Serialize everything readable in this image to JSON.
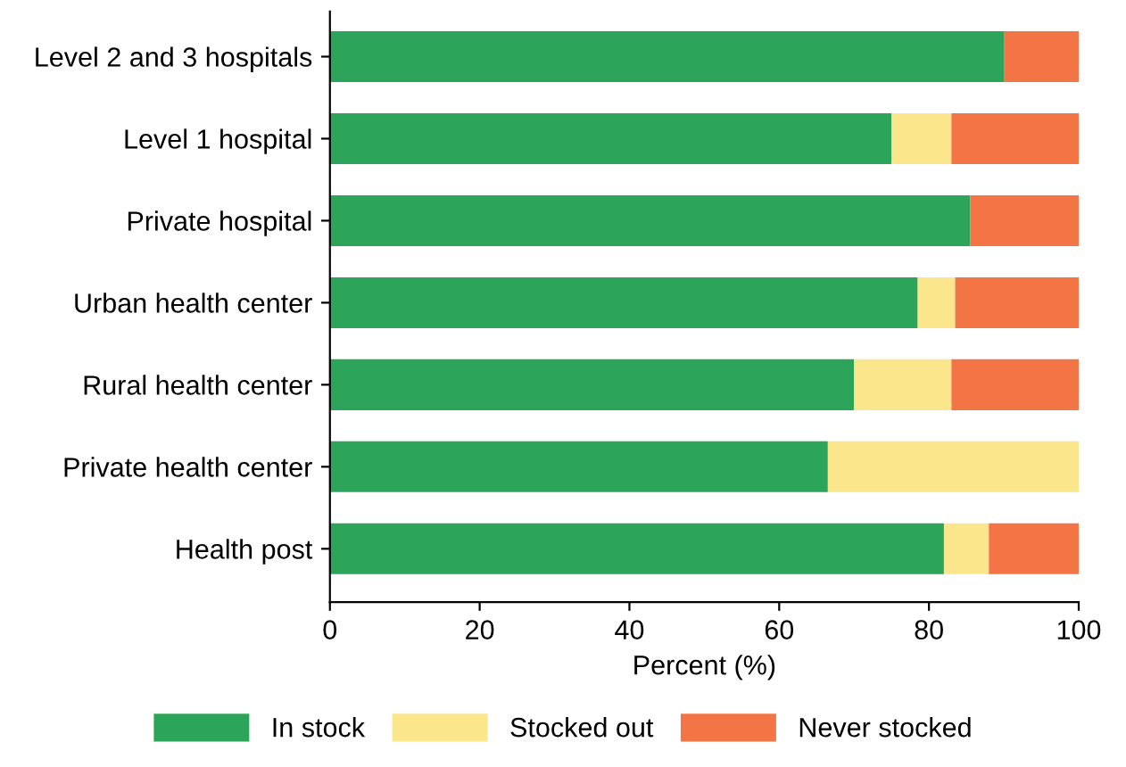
{
  "chart_data": {
    "type": "bar",
    "orientation": "horizontal",
    "stacked": true,
    "xlabel": "Percent (%)",
    "categories": [
      "Level 2 and 3 hospitals",
      "Level 1 hospital",
      "Private hospital",
      "Urban health center",
      "Rural health center",
      "Private health center",
      "Health post"
    ],
    "series": [
      {
        "name": "In stock",
        "color": "#2ca55a",
        "values": [
          90,
          75,
          85.5,
          78.5,
          70,
          66.5,
          82
        ]
      },
      {
        "name": "Stocked out",
        "color": "#fbe68c",
        "values": [
          0,
          8,
          0,
          5,
          13,
          33.5,
          6
        ]
      },
      {
        "name": "Never stocked",
        "color": "#f37545",
        "values": [
          10,
          17,
          14.5,
          16.5,
          17,
          0,
          12
        ]
      }
    ],
    "xlim": [
      0,
      100
    ],
    "xticks": [
      0,
      20,
      40,
      60,
      80,
      100
    ],
    "grid": false,
    "legend": "bottom"
  }
}
